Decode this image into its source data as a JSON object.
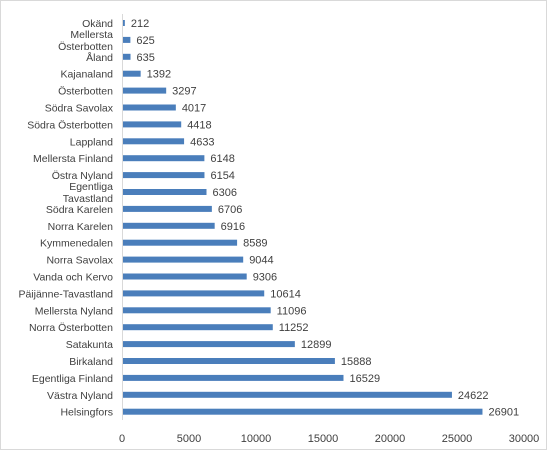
{
  "chart_data": {
    "type": "bar",
    "orientation": "horizontal",
    "categories": [
      "Okänd",
      "Mellersta Österbotten",
      "Åland",
      "Kajanaland",
      "Österbotten",
      "Södra Savolax",
      "Södra Österbotten",
      "Lappland",
      "Mellersta Finland",
      "Östra Nyland",
      "Egentliga Tavastland",
      "Södra Karelen",
      "Norra Karelen",
      "Kymmenedalen",
      "Norra Savolax",
      "Vanda och Kervo",
      "Päijänne-Tavastland",
      "Mellersta Nyland",
      "Norra Österbotten",
      "Satakunta",
      "Birkaland",
      "Egentliga Finland",
      "Västra Nyland",
      "Helsingfors"
    ],
    "values": [
      212,
      625,
      635,
      1392,
      3297,
      4017,
      4418,
      4633,
      6148,
      6154,
      6306,
      6706,
      6916,
      8589,
      9044,
      9306,
      10614,
      11096,
      11252,
      12899,
      15888,
      16529,
      24622,
      26901
    ],
    "xlim": [
      0,
      30000
    ],
    "xticks": [
      0,
      5000,
      10000,
      15000,
      20000,
      25000,
      30000
    ],
    "bar_color": "#4a7ebb",
    "grid": false,
    "legend": "none",
    "title": "",
    "xlabel": "",
    "ylabel": ""
  }
}
